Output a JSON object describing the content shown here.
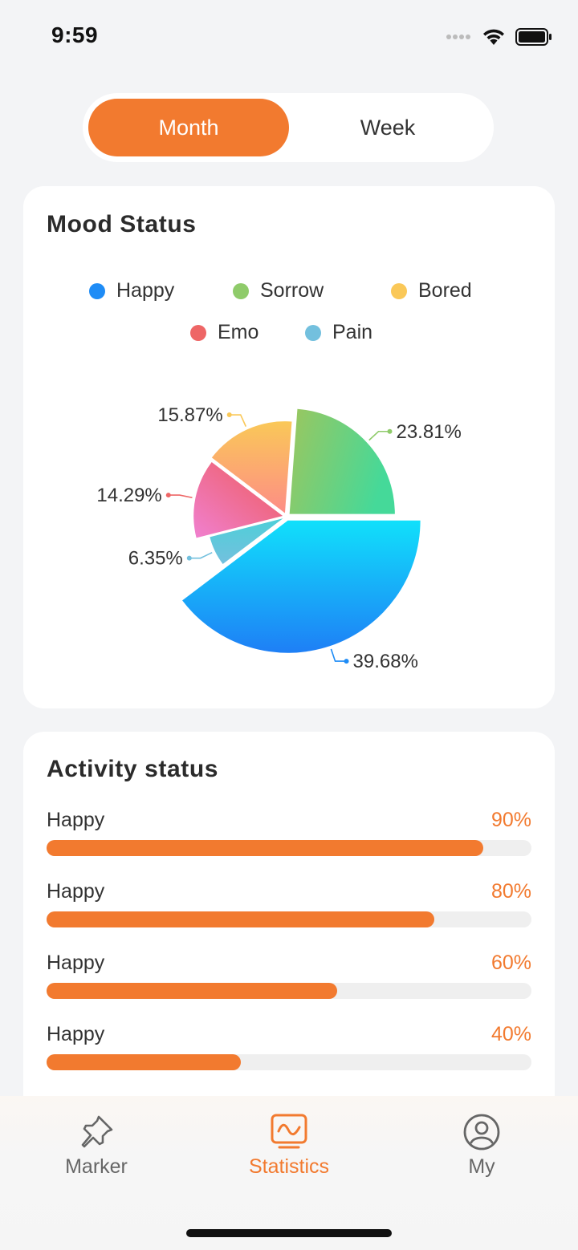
{
  "status_bar": {
    "time": "9:59"
  },
  "segmented": {
    "month_label": "Month",
    "week_label": "Week",
    "active": "month"
  },
  "mood_card": {
    "title": "Mood Status",
    "legend": [
      {
        "name": "Happy",
        "color": "#1e8cf6"
      },
      {
        "name": "Sorrow",
        "color": "#8fcb6a"
      },
      {
        "name": "Bored",
        "color": "#fac858"
      },
      {
        "name": "Emo",
        "color": "#ee6666"
      },
      {
        "name": "Pain",
        "color": "#73c0de"
      }
    ]
  },
  "chart_data": {
    "type": "pie",
    "variant": "rose",
    "series": [
      {
        "name": "Happy",
        "value": 39.68,
        "label": "39.68%",
        "color": "#1e8cf6"
      },
      {
        "name": "Pain",
        "value": 6.35,
        "label": "6.35%",
        "color": "#73c0de"
      },
      {
        "name": "Emo",
        "value": 14.29,
        "label": "14.29%",
        "color": "#ee6666"
      },
      {
        "name": "Bored",
        "value": 15.87,
        "label": "15.87%",
        "color": "#fac858"
      },
      {
        "name": "Sorrow",
        "value": 23.81,
        "label": "23.81%",
        "color": "#8fcb6a"
      }
    ],
    "legend_position": "top"
  },
  "activity_card": {
    "title": "Activity status",
    "items": [
      {
        "label": "Happy",
        "value_text": "90%",
        "value": 0.9
      },
      {
        "label": "Happy",
        "value_text": "80%",
        "value": 0.8
      },
      {
        "label": "Happy",
        "value_text": "60%",
        "value": 0.6
      },
      {
        "label": "Happy",
        "value_text": "40%",
        "value": 0.4
      }
    ]
  },
  "tabbar": {
    "items": [
      {
        "label": "Marker",
        "icon": "pin-icon",
        "active": false
      },
      {
        "label": "Statistics",
        "icon": "chart-screen-icon",
        "active": true
      },
      {
        "label": "My",
        "icon": "user-circle-icon",
        "active": false
      }
    ]
  },
  "colors": {
    "accent": "#f27a2f",
    "background": "#f3f4f6",
    "card": "#ffffff"
  }
}
